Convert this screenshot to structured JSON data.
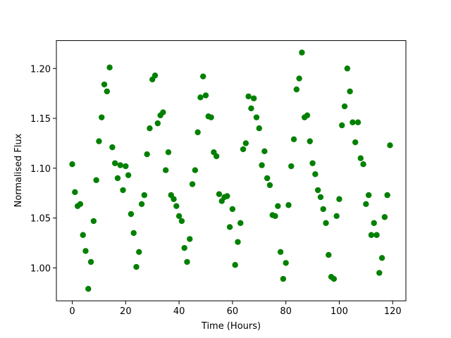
{
  "chart_data": {
    "type": "scatter",
    "x_label": "Time (Hours)",
    "y_label": "Normalised Flux",
    "color": "#008000",
    "x": [
      0,
      1,
      2,
      3,
      4,
      5,
      6,
      7,
      8,
      9,
      10,
      11,
      12,
      13,
      14,
      15,
      16,
      17,
      18,
      19,
      20,
      21,
      22,
      23,
      24,
      25,
      26,
      27,
      28,
      29,
      30,
      31,
      32,
      33,
      34,
      35,
      36,
      37,
      38,
      39,
      40,
      41,
      42,
      43,
      44,
      45,
      46,
      47,
      48,
      49,
      50,
      51,
      52,
      53,
      54,
      55,
      56,
      57,
      58,
      59,
      60,
      61,
      62,
      63,
      64,
      65,
      66,
      67,
      68,
      69,
      70,
      71,
      72,
      73,
      74,
      75,
      76,
      77,
      78,
      79,
      80,
      81,
      82,
      83,
      84,
      85,
      86,
      87,
      88,
      89,
      90,
      91,
      92,
      93,
      94,
      95,
      96,
      97,
      98,
      99,
      100,
      101,
      102,
      103,
      104,
      105,
      106,
      107,
      108,
      109,
      110,
      111,
      112,
      113,
      114,
      115,
      116,
      117,
      118,
      119
    ],
    "y": [
      1.104,
      1.076,
      1.062,
      1.064,
      1.033,
      1.017,
      0.979,
      1.006,
      1.047,
      1.088,
      1.127,
      1.151,
      1.184,
      1.177,
      1.201,
      1.121,
      1.105,
      1.09,
      1.103,
      1.078,
      1.102,
      1.093,
      1.054,
      1.035,
      1.001,
      1.016,
      1.064,
      1.073,
      1.114,
      1.14,
      1.189,
      1.193,
      1.145,
      1.153,
      1.156,
      1.098,
      1.116,
      1.073,
      1.069,
      1.062,
      1.052,
      1.047,
      1.02,
      1.006,
      1.029,
      1.084,
      1.098,
      1.136,
      1.171,
      1.192,
      1.173,
      1.152,
      1.151,
      1.116,
      1.112,
      1.074,
      1.067,
      1.071,
      1.072,
      1.041,
      1.059,
      1.003,
      1.026,
      1.045,
      1.119,
      1.125,
      1.172,
      1.16,
      1.17,
      1.151,
      1.14,
      1.103,
      1.117,
      1.09,
      1.083,
      1.053,
      1.052,
      1.062,
      1.016,
      0.989,
      1.005,
      1.063,
      1.102,
      1.129,
      1.179,
      1.19,
      1.216,
      1.151,
      1.153,
      1.127,
      1.105,
      1.094,
      1.078,
      1.071,
      1.059,
      1.045,
      1.013,
      0.991,
      0.989,
      1.052,
      1.069,
      1.143,
      1.162,
      1.2,
      1.177,
      1.146,
      1.126,
      1.146,
      1.11,
      1.104,
      1.064,
      1.073,
      1.033,
      1.045,
      1.033,
      0.995,
      1.01,
      1.051,
      1.073,
      1.123
    ],
    "xlim": [
      -5.95,
      124.95
    ],
    "ylim": [
      0.967,
      1.228
    ],
    "xticks": [
      0,
      20,
      40,
      60,
      80,
      100,
      120
    ],
    "yticks": [
      {
        "value": 1.0,
        "label": "1.00"
      },
      {
        "value": 1.05,
        "label": "1.05"
      },
      {
        "value": 1.1,
        "label": "1.10"
      },
      {
        "value": 1.15,
        "label": "1.15"
      },
      {
        "value": 1.2,
        "label": "1.20"
      }
    ]
  }
}
